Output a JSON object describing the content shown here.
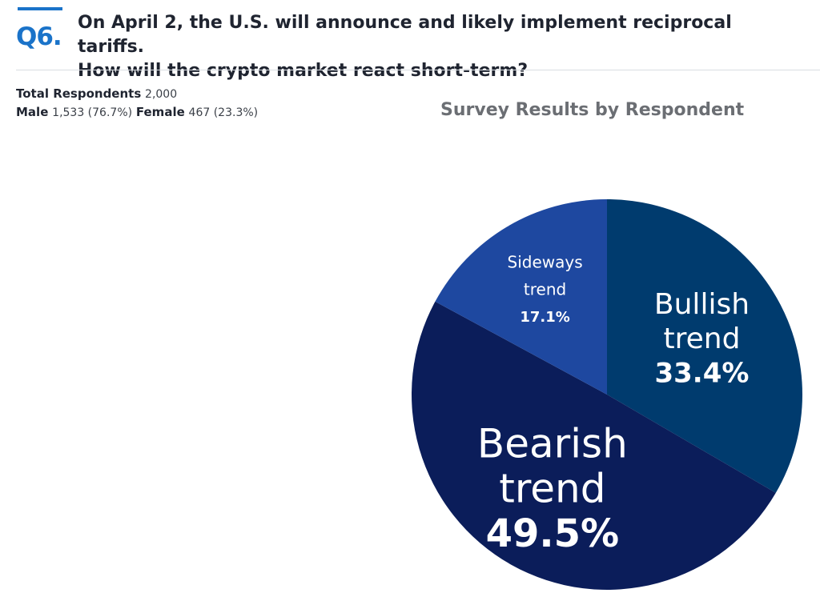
{
  "question": {
    "number": "Q6.",
    "line1": "On April 2, the U.S. will announce and likely implement reciprocal tariffs.",
    "line2": "How will the crypto market react short-term?"
  },
  "respondents": {
    "total_label": "Total Respondents",
    "total_value": "2,000",
    "male_label": "Male",
    "male_value": "1,533 (76.7%)",
    "female_label": "Female",
    "female_value": "467 (23.3%)"
  },
  "chart_data": {
    "type": "pie",
    "title": "Survey Results by Respondent",
    "slices": [
      {
        "name_lines": [
          "Bullish",
          "trend"
        ],
        "value": 33.4,
        "label": "33.4%",
        "color": "#003b6e",
        "size": "medium"
      },
      {
        "name_lines": [
          "Bearish",
          "trend"
        ],
        "value": 49.5,
        "label": "49.5%",
        "color": "#0b1d5a",
        "size": "large"
      },
      {
        "name_lines": [
          "Sideways",
          "trend"
        ],
        "value": 17.1,
        "label": "17.1%",
        "color": "#1e48a0",
        "size": "small"
      }
    ]
  }
}
